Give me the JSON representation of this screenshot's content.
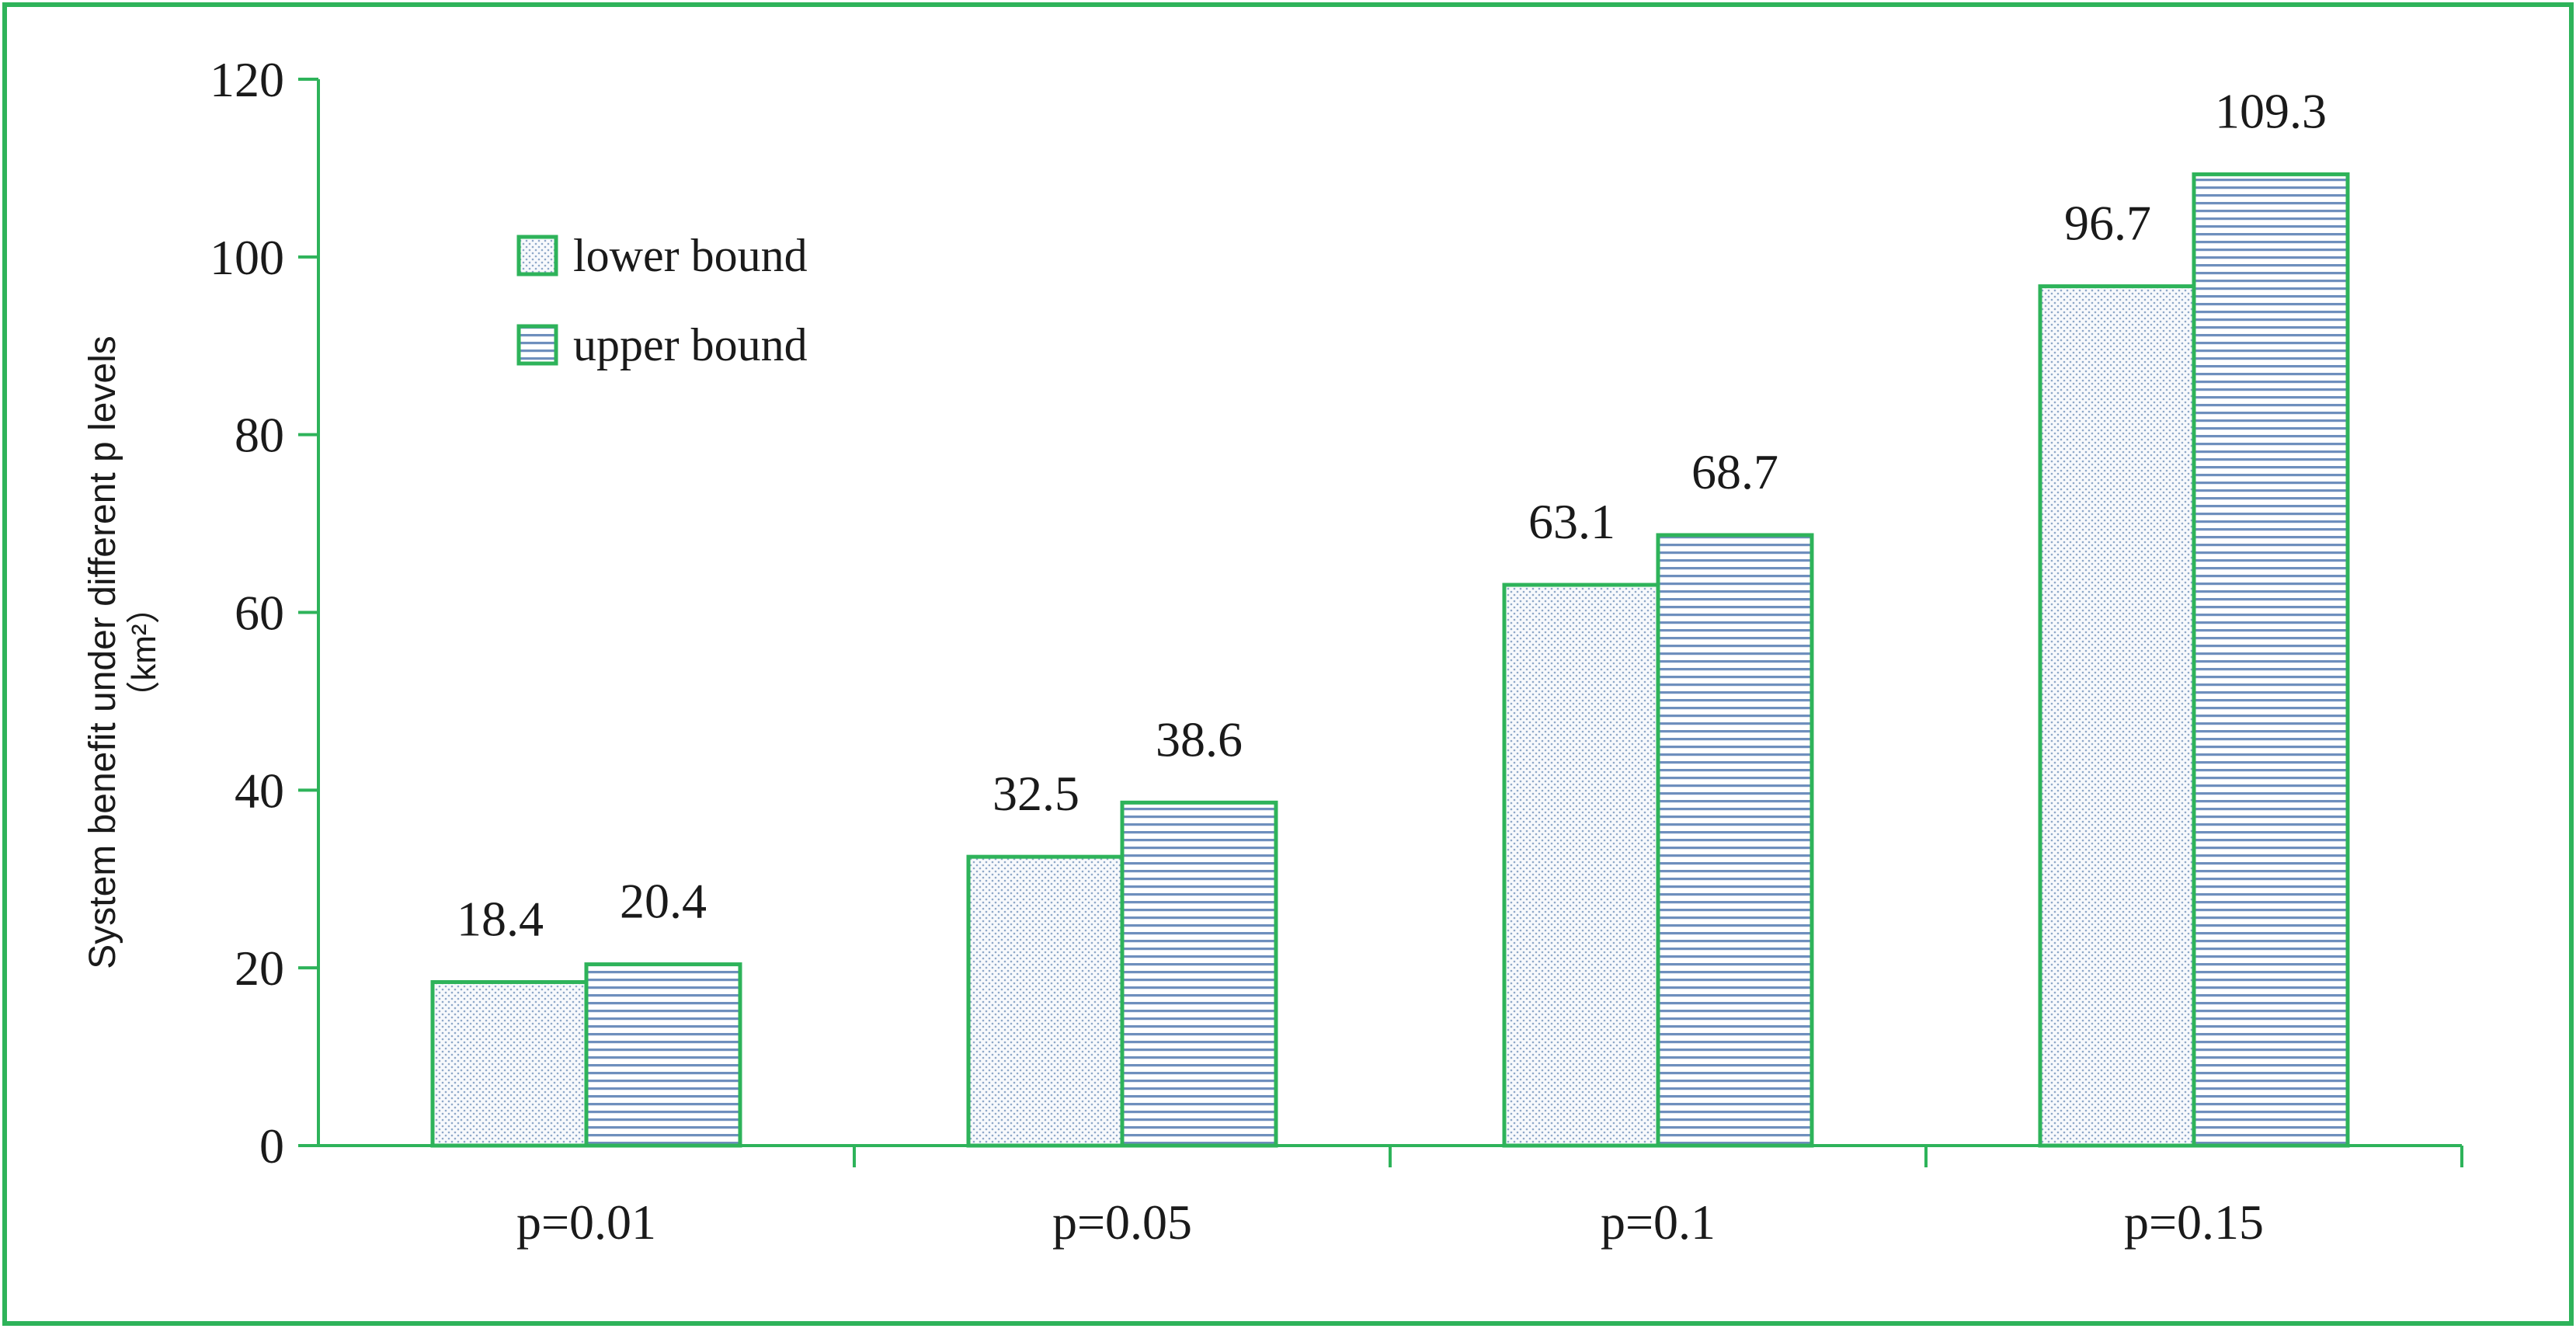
{
  "chart_data": {
    "type": "bar",
    "title": "",
    "xlabel": "",
    "ylabel": "System benefit under different p levels",
    "ylabel_unit": "（km²）",
    "categories": [
      "p=0.01",
      "p=0.05",
      "p=0.1",
      "p=0.15"
    ],
    "series": [
      {
        "name": "lower bound",
        "values": [
          18.4,
          32.5,
          63.1,
          96.7
        ],
        "pattern": "dots"
      },
      {
        "name": "upper bound",
        "values": [
          20.4,
          38.6,
          68.7,
          109.3
        ],
        "pattern": "horizontal-lines"
      }
    ],
    "data_labels": [
      [
        "18.4",
        "32.5",
        "63.1",
        "96.7"
      ],
      [
        "20.4",
        "38.6",
        "68.7",
        "109.3"
      ]
    ],
    "ylim": [
      0,
      120
    ],
    "yticks": [
      0,
      20,
      40,
      60,
      80,
      100,
      120
    ],
    "ytick_labels": [
      "0",
      "20",
      "40",
      "60",
      "80",
      "100",
      "120"
    ],
    "grid": false,
    "legend_position": "top-left",
    "colors": {
      "frame": "#2eb35a",
      "axis": "#2eb35a",
      "bar_edge": "#2eb35a",
      "dot_pattern": "#8fa8c8",
      "line_pattern": "#6e8fbd",
      "text": "#1a1a1a"
    }
  }
}
